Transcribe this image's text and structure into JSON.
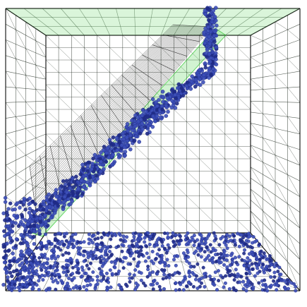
{
  "scene": {
    "description_visible_text": "",
    "colors": {
      "background": "#ffffff",
      "mesh_lines": "#1f2a1f",
      "mesh_lines_light": "#3b4a3b",
      "green_surface": "#32c832",
      "particles": "#3c4fb8",
      "particles_dark": "#1f2b86"
    }
  }
}
